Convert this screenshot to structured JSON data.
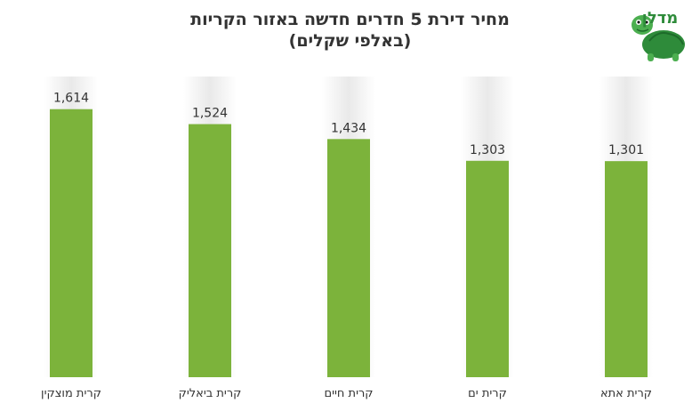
{
  "logo": {
    "text": "מדלן",
    "icon": "turtle-logo-icon",
    "color": "#2e8b3a"
  },
  "chart_data": {
    "type": "bar",
    "title": "מחיר דירת 5 חדרים חדשה באזור הקריות",
    "subtitle": "(באלפי שקלים)",
    "categories": [
      "קרית מוצקין",
      "קרית ביאליק",
      "קרית חיים",
      "קרית ים",
      "קרית אתא"
    ],
    "values": [
      1614,
      1524,
      1434,
      1303,
      1301
    ],
    "value_labels": [
      "1,614",
      "1,524",
      "1,434",
      "1,303",
      "1,301"
    ],
    "ylim": [
      0,
      1800
    ],
    "grid": false,
    "bar_color": "#7cb33b",
    "band_color": "#e9e9e9"
  }
}
